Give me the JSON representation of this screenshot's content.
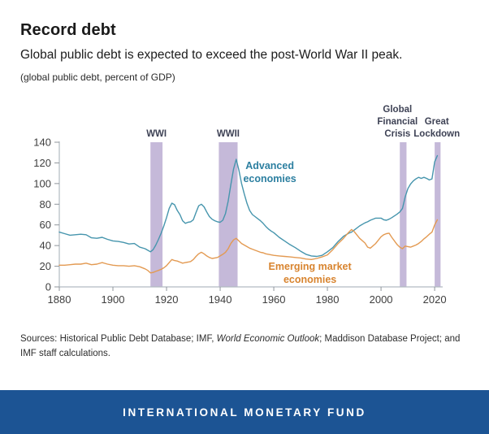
{
  "header": {
    "title": "Record debt",
    "subtitle": "Global public debt is expected to exceed the post-World War II peak.",
    "unit_note": "(global public debt, percent of GDP)"
  },
  "chart_data": {
    "type": "line",
    "title": "Record debt",
    "ylabel": "percent of GDP",
    "xlabel": "",
    "xlim": [
      1880,
      2023
    ],
    "ylim": [
      0,
      140
    ],
    "x_ticks": [
      1880,
      1900,
      1920,
      1940,
      1960,
      1980,
      2000,
      2020
    ],
    "y_ticks": [
      0,
      20,
      40,
      60,
      80,
      100,
      120,
      140
    ],
    "grid": false,
    "legend_position": "inline-annotations",
    "axis_color": "#b2bbc2",
    "tick_label_color": "#3e3e3e",
    "annotation_color": "#3e4255",
    "band_color": "#b7a8d0",
    "x": [
      1880,
      1882,
      1884,
      1886,
      1888,
      1890,
      1892,
      1894,
      1896,
      1898,
      1900,
      1902,
      1904,
      1906,
      1908,
      1910,
      1912,
      1913,
      1914,
      1915,
      1916,
      1917,
      1918,
      1919,
      1920,
      1921,
      1922,
      1923,
      1924,
      1925,
      1926,
      1927,
      1928,
      1929,
      1930,
      1931,
      1932,
      1933,
      1934,
      1935,
      1936,
      1937,
      1938,
      1939,
      1940,
      1941,
      1942,
      1943,
      1944,
      1945,
      1946,
      1947,
      1948,
      1949,
      1950,
      1951,
      1952,
      1953,
      1954,
      1955,
      1956,
      1957,
      1958,
      1959,
      1960,
      1962,
      1964,
      1966,
      1968,
      1970,
      1972,
      1974,
      1976,
      1978,
      1980,
      1982,
      1984,
      1986,
      1988,
      1989,
      1990,
      1992,
      1994,
      1995,
      1996,
      1998,
      2000,
      2001,
      2002,
      2003,
      2004,
      2006,
      2007,
      2008,
      2009,
      2010,
      2011,
      2012,
      2013,
      2014,
      2015,
      2016,
      2017,
      2018,
      2019,
      2020,
      2021
    ],
    "series": [
      {
        "name": "Advanced economies",
        "color": "#4695ad",
        "label_color": "#2c7fa0",
        "label_lines": [
          "Advanced",
          "economies"
        ],
        "label_anchor": {
          "year": 1958.5,
          "value": 114
        },
        "values": [
          53,
          51.5,
          50,
          50.5,
          51,
          50.5,
          47.5,
          47,
          48,
          46,
          44.5,
          44,
          43,
          41.5,
          42,
          38.5,
          37,
          35.5,
          34,
          36,
          40.5,
          46,
          52,
          59,
          67,
          76,
          81,
          79.5,
          74,
          70,
          64,
          61.5,
          62.5,
          63,
          65,
          72,
          78.5,
          80,
          77.5,
          72.5,
          68,
          65.5,
          64,
          63,
          62.5,
          64.5,
          71,
          83,
          99,
          114,
          123.5,
          113,
          100,
          90,
          81,
          74,
          70,
          68,
          66,
          64,
          61.5,
          58.5,
          56,
          54,
          52.5,
          48,
          44.5,
          41,
          38,
          34.5,
          31.5,
          30,
          29.5,
          30.5,
          34,
          38,
          44,
          49,
          52,
          53,
          55,
          59,
          62,
          63,
          64.5,
          66.5,
          66.5,
          65,
          64.5,
          65.5,
          67,
          70.5,
          72.5,
          76,
          87,
          95,
          99.5,
          102.5,
          104.5,
          106,
          105,
          106,
          105,
          103.5,
          104.5,
          121,
          127
        ]
      },
      {
        "name": "Emerging market economies",
        "color": "#e39a52",
        "label_color": "#d8842f",
        "label_lines": [
          "Emerging market",
          "economies"
        ],
        "label_anchor": {
          "year": 1973.5,
          "value": 16.5
        },
        "values": [
          21,
          21,
          21.5,
          22,
          22,
          23,
          21.5,
          22,
          23.5,
          22,
          21,
          20.5,
          20.5,
          20,
          20.5,
          19.5,
          17.5,
          16,
          13.5,
          14,
          15,
          16,
          17,
          18.5,
          20.5,
          23.5,
          26.5,
          25.5,
          25,
          24,
          23,
          23.5,
          24,
          24.5,
          26.5,
          29.5,
          32,
          33.5,
          32,
          30,
          28.5,
          27.5,
          28,
          28.5,
          30,
          31.5,
          33.5,
          37,
          42,
          45.5,
          47,
          44.5,
          42,
          40.5,
          39,
          37.5,
          36.5,
          35.5,
          34.5,
          33.5,
          33,
          32,
          31.5,
          31,
          30.5,
          30,
          29.5,
          29,
          28.5,
          28,
          27,
          26.5,
          27.5,
          29,
          31,
          36,
          42,
          47,
          53,
          55.5,
          53.5,
          47,
          42.5,
          38.5,
          37.5,
          42,
          48.5,
          50.5,
          51.5,
          52,
          48,
          41,
          38.5,
          37,
          39.5,
          39,
          38.5,
          39.5,
          40.5,
          42,
          44,
          46.5,
          48.5,
          51,
          53,
          60,
          65
        ]
      }
    ],
    "bands": [
      {
        "name": "wwi",
        "label_lines": [
          "WWI"
        ],
        "from": 1914,
        "to": 1918.5,
        "label_dx": 0
      },
      {
        "name": "wwii",
        "label_lines": [
          "WWII"
        ],
        "from": 1939.5,
        "to": 1946.5,
        "label_dx": 0
      },
      {
        "name": "global-financial-crisis",
        "label_lines": [
          "Global",
          "Financial",
          "Crisis"
        ],
        "from": 2007,
        "to": 2009.5,
        "label_dx": -7
      },
      {
        "name": "great-lockdown",
        "label_lines": [
          "Great",
          "Lockdown"
        ],
        "from": 2020,
        "to": 2022.2,
        "label_dx": -1
      }
    ]
  },
  "sources": {
    "prefix": "Sources: Historical Public Debt Database; IMF, ",
    "italic": "World Economic Outlook",
    "suffix": "; Maddison Database Project; and IMF staff calculations."
  },
  "footer": {
    "label": "INTERNATIONAL MONETARY FUND",
    "bar_color": "#1c5494"
  }
}
